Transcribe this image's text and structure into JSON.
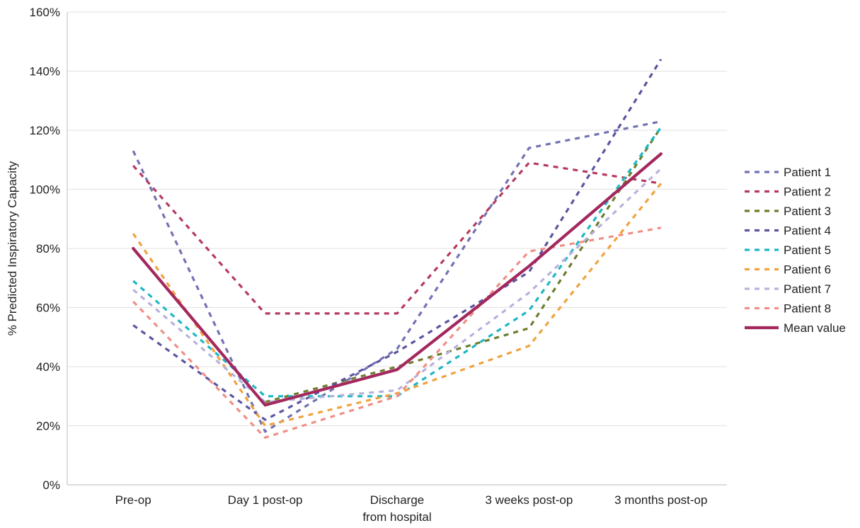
{
  "chart_data": {
    "type": "line",
    "ylabel": "% Predicted Inspiratory Capacity",
    "xlabel": "",
    "ylim": [
      0,
      160
    ],
    "yticks": [
      "0%",
      "20%",
      "40%",
      "60%",
      "80%",
      "100%",
      "120%",
      "140%",
      "160%"
    ],
    "categories": [
      {
        "lines": [
          "Pre-op"
        ]
      },
      {
        "lines": [
          "Day 1 post-op"
        ]
      },
      {
        "lines": [
          "Discharge",
          "from hospital"
        ]
      },
      {
        "lines": [
          "3 weeks post-op"
        ]
      },
      {
        "lines": [
          "3 months post-op"
        ]
      }
    ],
    "grid": true,
    "legend_position": "right",
    "series": [
      {
        "name": "Patient 1",
        "color": "#7272b4",
        "style": "dashed",
        "values": [
          113,
          18,
          46,
          114,
          123
        ]
      },
      {
        "name": "Patient 2",
        "color": "#b53a62",
        "style": "dashed",
        "values": [
          108,
          58,
          58,
          109,
          102
        ]
      },
      {
        "name": "Patient 3",
        "color": "#6d7d2c",
        "style": "dashed",
        "values": [
          null,
          28,
          40,
          53,
          121
        ]
      },
      {
        "name": "Patient 4",
        "color": "#5b55a0",
        "style": "dashed",
        "values": [
          54,
          22,
          45,
          72,
          144
        ]
      },
      {
        "name": "Patient 5",
        "color": "#1fb6c4",
        "style": "dashed",
        "values": [
          69,
          30,
          30,
          59,
          121
        ]
      },
      {
        "name": "Patient 6",
        "color": "#f0a23e",
        "style": "dashed",
        "values": [
          85,
          20,
          31,
          47,
          102
        ]
      },
      {
        "name": "Patient 7",
        "color": "#b7b2dc",
        "style": "dashed",
        "values": [
          66,
          28,
          32,
          65,
          107
        ]
      },
      {
        "name": "Patient 8",
        "color": "#ef8f86",
        "style": "dashed",
        "values": [
          62,
          16,
          30,
          79,
          87
        ]
      },
      {
        "name": "Mean value",
        "color": "#a3285d",
        "style": "solid",
        "values": [
          80,
          27,
          39,
          74,
          112
        ]
      }
    ]
  }
}
